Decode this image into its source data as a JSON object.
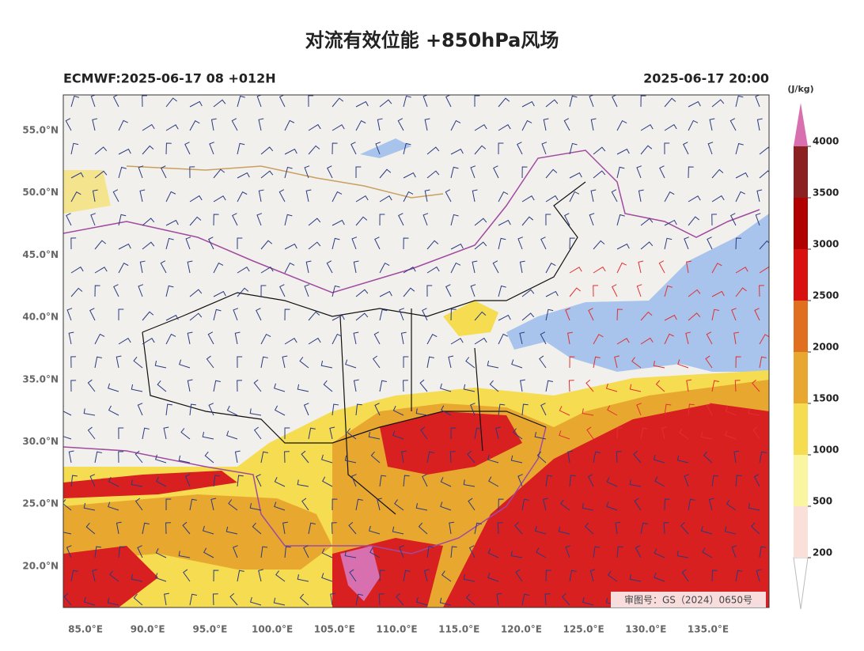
{
  "header": {
    "title": "对流有效位能 +850hPa风场",
    "left": "ECMWF:2025-06-17 08 +012H",
    "right": "2025-06-17 20:00"
  },
  "map": {
    "lat_labels": [
      "55.0°N",
      "50.0°N",
      "45.0°N",
      "40.0°N",
      "35.0°N",
      "30.0°N",
      "25.0°N",
      "20.0°N"
    ],
    "lon_labels": [
      "85.0°E",
      "90.0°E",
      "95.0°E",
      "100.0°E",
      "105.0°E",
      "110.0°E",
      "115.0°E",
      "120.0°E",
      "125.0°E",
      "130.0°E",
      "135.0°E"
    ],
    "review_number": "审图号：GS（2024）0650号"
  },
  "colorbar": {
    "unit": "(J/kg)",
    "levels": [
      200,
      500,
      1000,
      1500,
      2000,
      2500,
      3000,
      3500,
      4000
    ],
    "colors": [
      "#ffffff",
      "#fbe0da",
      "#faf5a0",
      "#f5dc50",
      "#e8a830",
      "#e07020",
      "#d81010",
      "#b00000",
      "#8a2020",
      "#d870b0"
    ]
  }
}
